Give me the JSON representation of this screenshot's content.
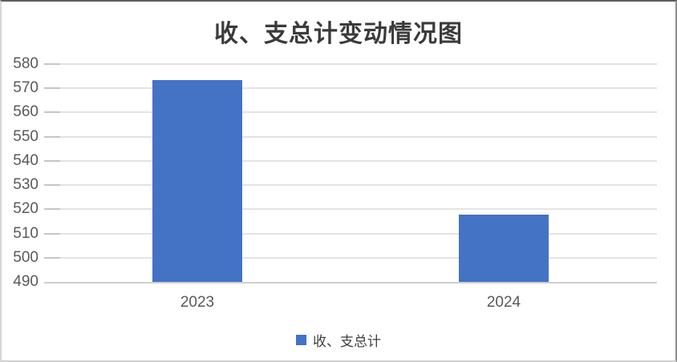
{
  "chart_data": {
    "type": "bar",
    "title": "收、支总计变动情况图",
    "categories": [
      "2023",
      "2024"
    ],
    "series": [
      {
        "name": "收、支总计",
        "values": [
          573.5,
          517.7
        ]
      }
    ],
    "xlabel": "",
    "ylabel": "",
    "ylim": [
      490,
      580
    ],
    "yticks": [
      490,
      500,
      510,
      520,
      530,
      540,
      550,
      560,
      570,
      580
    ],
    "grid": true,
    "legend_position": "bottom",
    "bar_color": "#4472C4"
  },
  "colors": {
    "bar": "#4472C4",
    "gridline": "#e3e3e3",
    "gridline_dark": "#c6c6c6",
    "axis_line": "#cfcfcf",
    "tick_text": "#595959",
    "title_text": "#3b3b3b"
  }
}
